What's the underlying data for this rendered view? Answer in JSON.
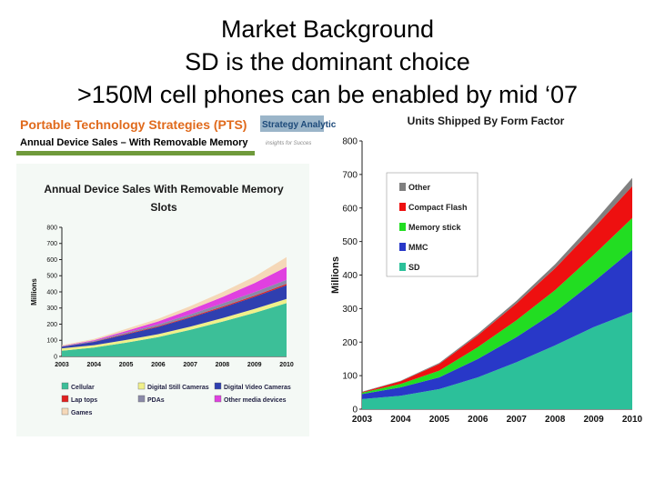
{
  "slide": {
    "title_lines": [
      "Market Background",
      "SD is the dominant choice",
      ">150M cell phones can be enabled by mid ‘07"
    ]
  },
  "left_panel": {
    "banner_title": "Portable Technology Strategies (PTS)",
    "banner_subtitle": "Annual Device Sales – With Removable Memory",
    "logo_text": "Strategy Analytic",
    "logo_tagline": "insights for Succes"
  },
  "chart_data": [
    {
      "type": "area",
      "stacked": true,
      "title": "Annual Device Sales With Removable Memory Slots",
      "xlabel": "",
      "ylabel": "Millions",
      "x": [
        "2003",
        "2004",
        "2005",
        "2006",
        "2007",
        "2008",
        "2009",
        "2010"
      ],
      "ylim": [
        0,
        800
      ],
      "yticks": [
        "0",
        "100",
        "200",
        "300",
        "400",
        "500",
        "600",
        "700",
        "800"
      ],
      "legend_position": "bottom",
      "series": [
        {
          "name": "Cellular",
          "color": "#3cbf98",
          "values": [
            35,
            55,
            85,
            120,
            165,
            215,
            270,
            330
          ]
        },
        {
          "name": "Digital Still Cameras",
          "color": "#f0f08a",
          "values": [
            15,
            15,
            17,
            18,
            20,
            22,
            24,
            26
          ]
        },
        {
          "name": "Digital Video Cameras",
          "color": "#2f3fb0",
          "values": [
            10,
            20,
            35,
            45,
            55,
            65,
            75,
            85
          ]
        },
        {
          "name": "Lap tops",
          "color": "#e02020",
          "values": [
            1,
            2,
            3,
            4,
            5,
            6,
            7,
            8
          ]
        },
        {
          "name": "PDAs",
          "color": "#8a8aa8",
          "values": [
            2,
            4,
            8,
            12,
            16,
            20,
            22,
            26
          ]
        },
        {
          "name": "Other media devices",
          "color": "#e040e0",
          "values": [
            2,
            5,
            10,
            18,
            28,
            40,
            56,
            80
          ]
        },
        {
          "name": "Games",
          "color": "#f5d8b8",
          "values": [
            5,
            8,
            12,
            16,
            22,
            30,
            40,
            60
          ]
        }
      ]
    },
    {
      "type": "area",
      "stacked": true,
      "title": "Units Shipped By Form Factor",
      "xlabel": "",
      "ylabel": "Millions",
      "x": [
        "2003",
        "2004",
        "2005",
        "2006",
        "2007",
        "2008",
        "2009",
        "2010"
      ],
      "ylim": [
        0,
        800
      ],
      "yticks": [
        "0",
        "100",
        "200",
        "300",
        "400",
        "500",
        "600",
        "700",
        "800"
      ],
      "legend_position": "top-left",
      "series": [
        {
          "name": "SD",
          "color": "#2cc09a",
          "values": [
            30,
            40,
            60,
            95,
            140,
            190,
            245,
            290
          ]
        },
        {
          "name": "MMC",
          "color": "#2838c8",
          "values": [
            15,
            25,
            35,
            55,
            75,
            100,
            135,
            185
          ]
        },
        {
          "name": "Memory stick",
          "color": "#22dd22",
          "values": [
            4,
            10,
            20,
            35,
            50,
            65,
            80,
            95
          ]
        },
        {
          "name": "Compact Flash",
          "color": "#ee1010",
          "values": [
            2,
            8,
            20,
            35,
            50,
            65,
            80,
            95
          ]
        },
        {
          "name": "Other",
          "color": "#808080",
          "values": [
            1,
            2,
            3,
            5,
            8,
            12,
            17,
            25
          ]
        }
      ]
    }
  ]
}
